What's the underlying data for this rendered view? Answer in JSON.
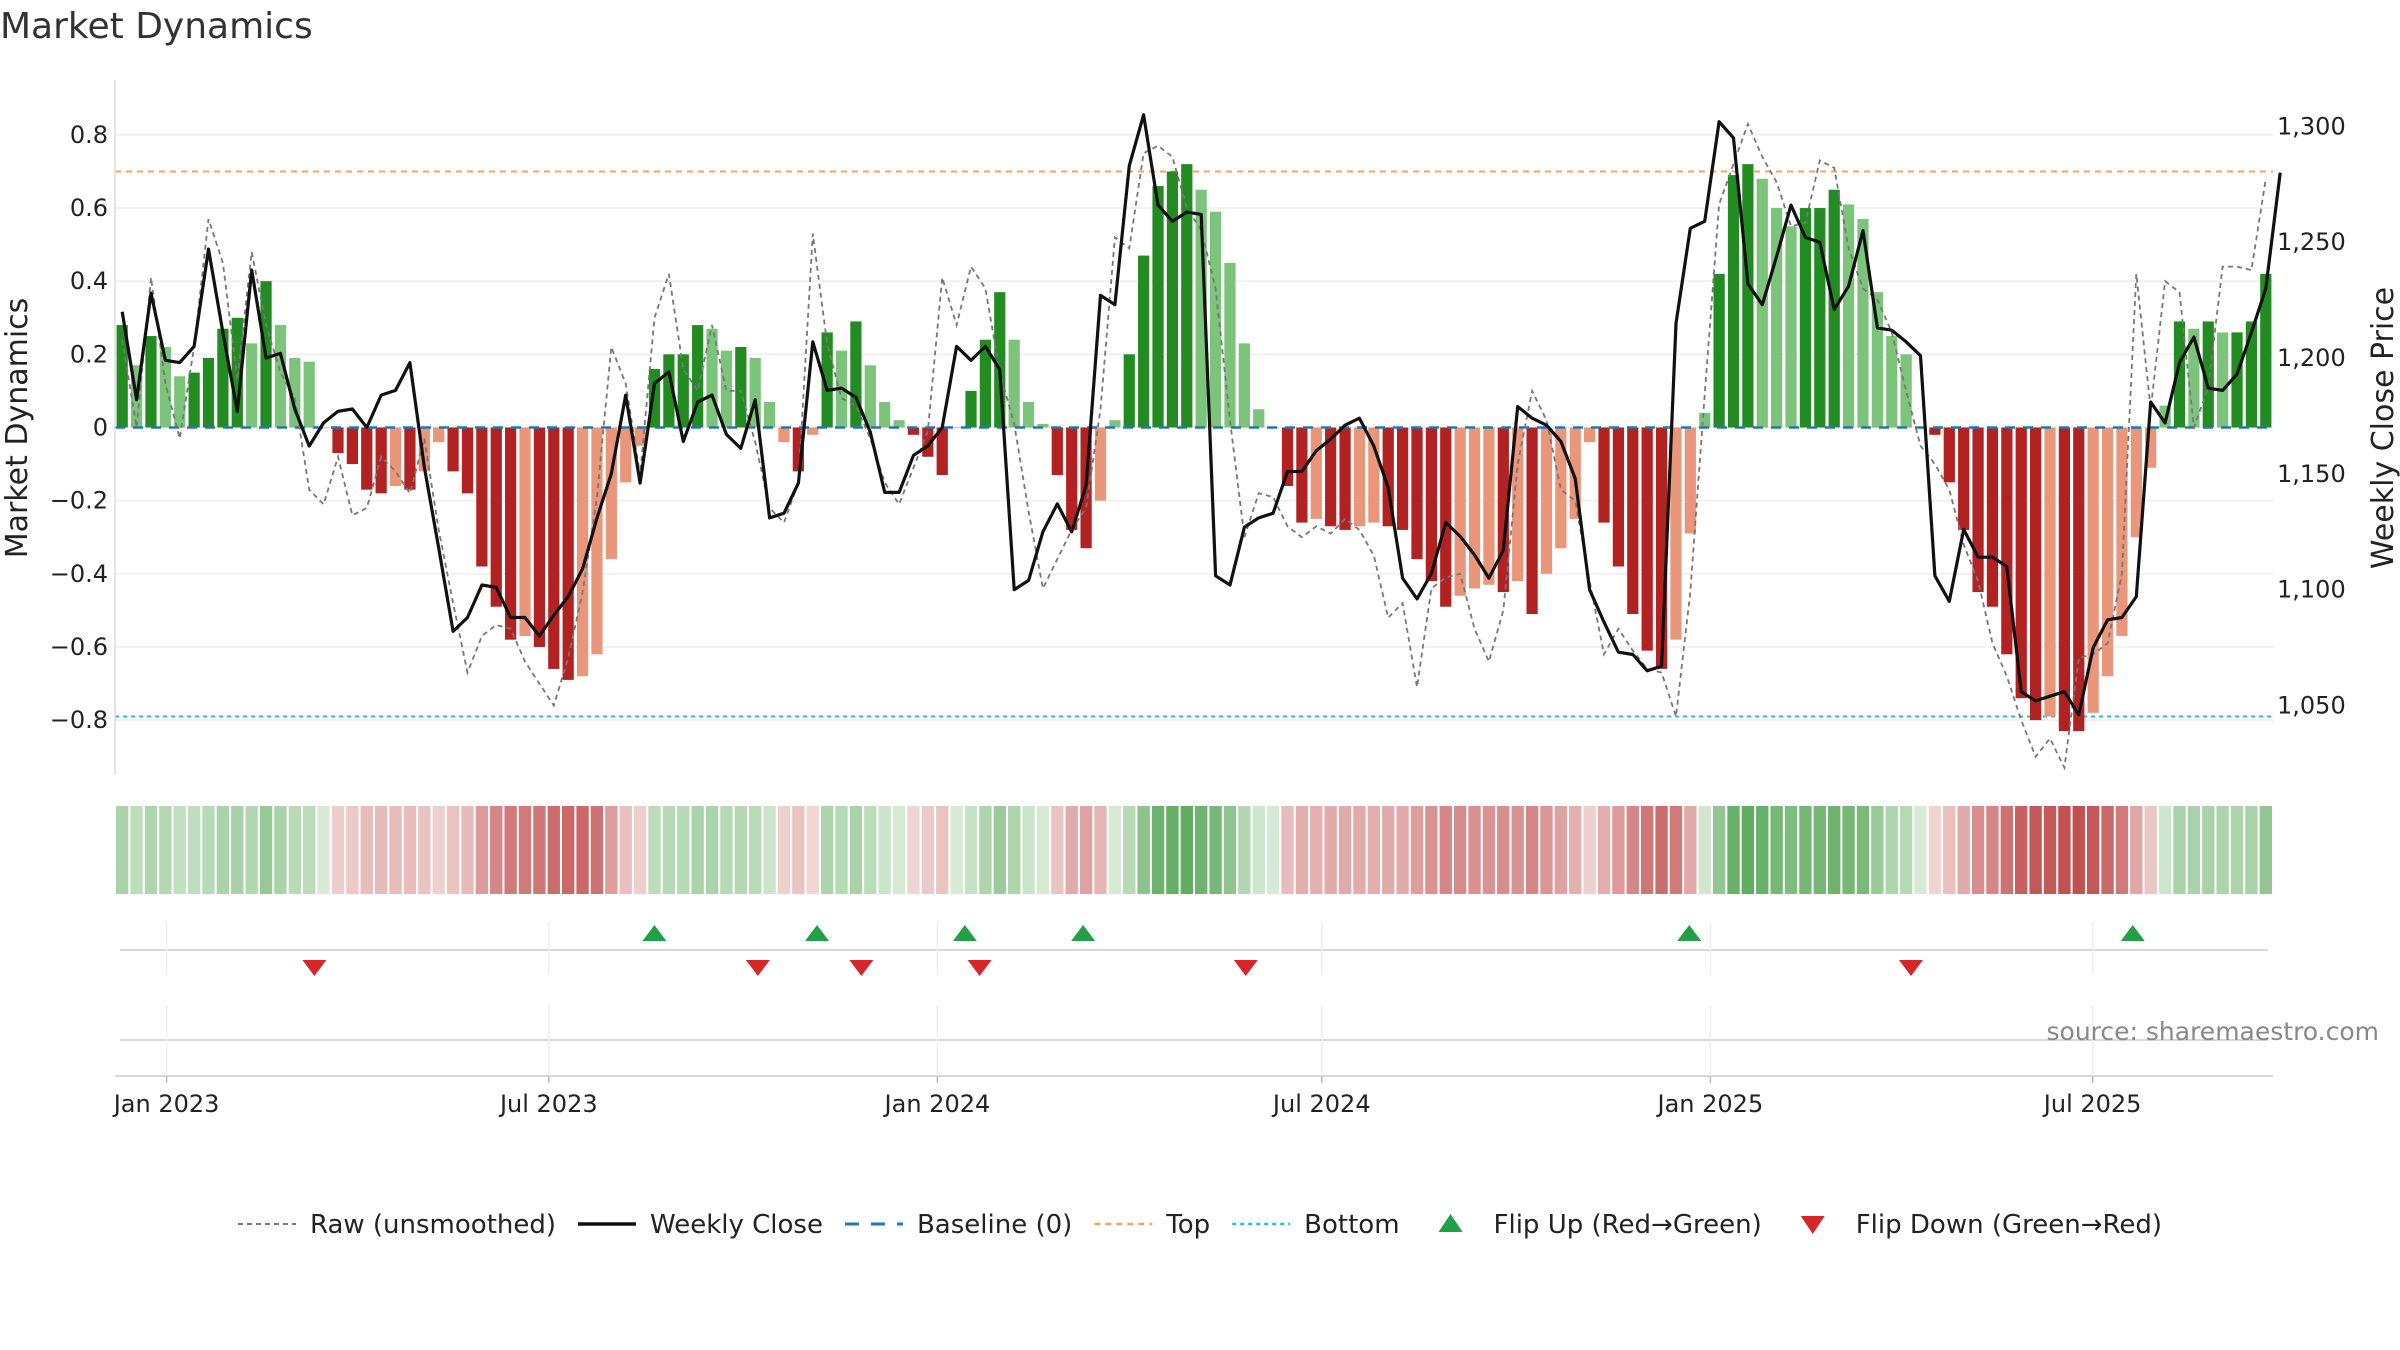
{
  "title": "Market Dynamics",
  "source_text": "source: sharemaestro.com",
  "colors": {
    "strong_green": "#228b22",
    "light_green": "#7cc47c",
    "strong_red": "#b22222",
    "light_red": "#e9967a",
    "close_line": "#111111",
    "raw_line": "#777777",
    "baseline": "#1f77b4",
    "top": "#f4a460",
    "bottom": "#20c5c5",
    "flip_up": "#22a045",
    "flip_down": "#d62728"
  },
  "legend": [
    {
      "key": "raw",
      "label": "Raw (unsmoothed)"
    },
    {
      "key": "close",
      "label": "Weekly Close"
    },
    {
      "key": "baseline",
      "label": "Baseline (0)"
    },
    {
      "key": "top",
      "label": "Top"
    },
    {
      "key": "bottom",
      "label": "Bottom"
    },
    {
      "key": "flip_up",
      "label": "Flip Up (Red→Green)"
    },
    {
      "key": "flip_down",
      "label": "Flip Down (Green→Red)"
    }
  ],
  "chart_data": {
    "type": "bar",
    "title": "Market Dynamics",
    "ylabel_left": "Market Dynamics",
    "ylabel_right": "Weekly Close Price",
    "ylim_left": [
      -0.95,
      0.95
    ],
    "ylim_right": [
      1020,
      1320
    ],
    "left_ticks": [
      0.8,
      0.6,
      0.4,
      0.2,
      0,
      -0.2,
      -0.4,
      -0.6,
      -0.8
    ],
    "left_tick_labels": [
      "0.8",
      "0.6",
      "0.4",
      "0.2",
      "0",
      "−0.2",
      "−0.4",
      "−0.6",
      "−0.8"
    ],
    "right_ticks": [
      1300,
      1250,
      1200,
      1150,
      1100,
      1050
    ],
    "right_tick_labels": [
      "1,300",
      "1,250",
      "1,200",
      "1,150",
      "1,100",
      "1,050"
    ],
    "x_ticks": [
      {
        "date": "2023-01-01",
        "label": "Jan 2023"
      },
      {
        "date": "2023-07-01",
        "label": "Jul 2023"
      },
      {
        "date": "2024-01-01",
        "label": "Jan 2024"
      },
      {
        "date": "2024-07-01",
        "label": "Jul 2024"
      },
      {
        "date": "2025-01-01",
        "label": "Jan 2025"
      },
      {
        "date": "2025-07-01",
        "label": "Jul 2025"
      }
    ],
    "first_week": "2022-12-11",
    "last_week": "2025-09-21",
    "top_level": 0.7,
    "bottom_level": -0.79,
    "baseline": 0,
    "market_dynamics": [
      0.28,
      0.17,
      0.25,
      0.22,
      0.14,
      0.15,
      0.19,
      0.27,
      0.3,
      0.23,
      0.4,
      0.28,
      0.19,
      0.18,
      0.0,
      -0.07,
      -0.1,
      -0.17,
      -0.18,
      -0.16,
      -0.17,
      -0.12,
      -0.04,
      -0.12,
      -0.18,
      -0.38,
      -0.49,
      -0.58,
      -0.57,
      -0.6,
      -0.66,
      -0.69,
      -0.68,
      -0.62,
      -0.36,
      -0.15,
      -0.05,
      0.16,
      0.2,
      0.2,
      0.28,
      0.27,
      0.21,
      0.22,
      0.19,
      0.07,
      -0.04,
      -0.12,
      -0.02,
      0.26,
      0.21,
      0.29,
      0.17,
      0.07,
      0.02,
      -0.02,
      -0.08,
      -0.13,
      0.0,
      0.1,
      0.24,
      0.37,
      0.24,
      0.07,
      0.01,
      -0.13,
      -0.28,
      -0.33,
      -0.2,
      0.02,
      0.2,
      0.47,
      0.66,
      0.7,
      0.72,
      0.65,
      0.59,
      0.45,
      0.23,
      0.05,
      0.0,
      -0.16,
      -0.26,
      -0.25,
      -0.27,
      -0.28,
      -0.27,
      -0.26,
      -0.27,
      -0.28,
      -0.36,
      -0.42,
      -0.49,
      -0.46,
      -0.44,
      -0.43,
      -0.45,
      -0.42,
      -0.51,
      -0.4,
      -0.33,
      -0.25,
      -0.04,
      -0.26,
      -0.38,
      -0.51,
      -0.61,
      -0.66,
      -0.58,
      -0.29,
      0.04,
      0.42,
      0.69,
      0.72,
      0.68,
      0.6,
      0.55,
      0.6,
      0.6,
      0.65,
      0.61,
      0.57,
      0.37,
      0.25,
      0.2,
      0.0,
      -0.02,
      -0.15,
      -0.28,
      -0.45,
      -0.49,
      -0.62,
      -0.74,
      -0.8,
      -0.79,
      -0.83,
      -0.83,
      -0.78,
      -0.68,
      -0.57,
      -0.3,
      -0.11,
      0.06,
      0.29,
      0.27,
      0.29,
      0.26,
      0.26,
      0.29,
      0.42
    ],
    "raw": [
      0.24,
      0.0,
      0.41,
      0.12,
      -0.03,
      0.22,
      0.57,
      0.45,
      0.13,
      0.48,
      0.28,
      0.15,
      0.08,
      -0.17,
      -0.21,
      -0.08,
      -0.24,
      -0.22,
      -0.08,
      -0.12,
      -0.18,
      -0.03,
      -0.28,
      -0.48,
      -0.67,
      -0.57,
      -0.54,
      -0.55,
      -0.64,
      -0.7,
      -0.76,
      -0.63,
      -0.45,
      -0.19,
      0.22,
      0.12,
      -0.13,
      0.3,
      0.42,
      0.16,
      0.1,
      0.28,
      0.1,
      0.1,
      -0.04,
      -0.22,
      -0.26,
      -0.15,
      0.53,
      0.23,
      0.08,
      0.06,
      -0.03,
      -0.15,
      -0.21,
      -0.11,
      -0.01,
      0.41,
      0.28,
      0.44,
      0.38,
      0.15,
      0.01,
      -0.23,
      -0.44,
      -0.36,
      -0.28,
      -0.22,
      0.05,
      0.52,
      0.49,
      0.75,
      0.77,
      0.74,
      0.6,
      0.54,
      0.38,
      0.02,
      -0.3,
      -0.18,
      -0.19,
      -0.27,
      -0.3,
      -0.27,
      -0.29,
      -0.25,
      -0.28,
      -0.35,
      -0.52,
      -0.48,
      -0.71,
      -0.44,
      -0.41,
      -0.4,
      -0.55,
      -0.64,
      -0.5,
      -0.1,
      0.1,
      0.02,
      -0.17,
      -0.2,
      -0.42,
      -0.62,
      -0.55,
      -0.61,
      -0.66,
      -0.67,
      -0.79,
      -0.45,
      0.09,
      0.61,
      0.72,
      0.83,
      0.74,
      0.67,
      0.55,
      0.56,
      0.73,
      0.71,
      0.49,
      0.38,
      0.35,
      0.26,
      0.1,
      -0.05,
      -0.1,
      -0.17,
      -0.32,
      -0.42,
      -0.59,
      -0.68,
      -0.8,
      -0.9,
      -0.85,
      -0.93,
      -0.63,
      -0.62,
      -0.59,
      -0.4,
      0.42,
      0.05,
      0.4,
      0.37,
      0.0,
      0.11,
      0.44,
      0.44,
      0.43,
      0.68
    ],
    "close": [
      1220,
      1182,
      1228,
      1199,
      1198,
      1205,
      1247,
      1211,
      1177,
      1238,
      1200,
      1202,
      1178,
      1162,
      1172,
      1177,
      1178,
      1170,
      1184,
      1186,
      1198,
      1153,
      1118,
      1082,
      1088,
      1102,
      1101,
      1088,
      1088,
      1080,
      1089,
      1097,
      1109,
      1131,
      1150,
      1184,
      1146,
      1189,
      1194,
      1164,
      1181,
      1184,
      1167,
      1161,
      1182,
      1131,
      1133,
      1146,
      1207,
      1186,
      1187,
      1183,
      1168,
      1142,
      1142,
      1158,
      1162,
      1170,
      1205,
      1199,
      1205,
      1195,
      1100,
      1104,
      1125,
      1137,
      1125,
      1145,
      1227,
      1223,
      1283,
      1305,
      1266,
      1259,
      1263,
      1262,
      1106,
      1102,
      1127,
      1131,
      1133,
      1151,
      1151,
      1160,
      1165,
      1171,
      1174,
      1162,
      1144,
      1105,
      1096,
      1107,
      1129,
      1123,
      1115,
      1105,
      1117,
      1179,
      1174,
      1171,
      1164,
      1148,
      1100,
      1086,
      1073,
      1072,
      1065,
      1067,
      1215,
      1256,
      1259,
      1302,
      1295,
      1232,
      1223,
      1244,
      1266,
      1252,
      1250,
      1221,
      1231,
      1255,
      1213,
      1212,
      1207,
      1201,
      1106,
      1095,
      1126,
      1114,
      1114,
      1110,
      1056,
      1052,
      1054,
      1056,
      1046,
      1075,
      1087,
      1088,
      1097,
      1181,
      1172,
      1198,
      1209,
      1187,
      1186,
      1193,
      1211,
      1230,
      1280
    ],
    "strength_band": [
      0.28,
      0.17,
      0.25,
      0.22,
      0.14,
      0.15,
      0.19,
      0.27,
      0.3,
      0.23,
      0.4,
      0.28,
      0.19,
      0.18,
      0.0,
      -0.07,
      -0.1,
      -0.17,
      -0.18,
      -0.16,
      -0.17,
      -0.12,
      -0.04,
      -0.12,
      -0.18,
      -0.38,
      -0.49,
      -0.58,
      -0.57,
      -0.6,
      -0.66,
      -0.69,
      -0.68,
      -0.62,
      -0.36,
      -0.15,
      -0.05,
      0.16,
      0.2,
      0.2,
      0.28,
      0.27,
      0.21,
      0.22,
      0.19,
      0.07,
      -0.04,
      -0.12,
      -0.02,
      0.26,
      0.21,
      0.29,
      0.17,
      0.07,
      0.02,
      -0.02,
      -0.08,
      -0.13,
      0.0,
      0.1,
      0.24,
      0.37,
      0.24,
      0.07,
      0.01,
      -0.13,
      -0.28,
      -0.33,
      -0.2,
      0.02,
      0.2,
      0.47,
      0.66,
      0.7,
      0.72,
      0.65,
      0.59,
      0.45,
      0.23,
      0.05,
      0.0,
      -0.16,
      -0.26,
      -0.25,
      -0.27,
      -0.28,
      -0.27,
      -0.26,
      -0.27,
      -0.28,
      -0.36,
      -0.42,
      -0.49,
      -0.46,
      -0.44,
      -0.43,
      -0.45,
      -0.42,
      -0.51,
      -0.4,
      -0.33,
      -0.25,
      -0.04,
      -0.26,
      -0.38,
      -0.51,
      -0.61,
      -0.66,
      -0.58,
      -0.29,
      0.04,
      0.42,
      0.69,
      0.72,
      0.68,
      0.6,
      0.55,
      0.6,
      0.6,
      0.65,
      0.61,
      0.57,
      0.37,
      0.25,
      0.2,
      0.0,
      -0.02,
      -0.15,
      -0.28,
      -0.45,
      -0.49,
      -0.62,
      -0.74,
      -0.8,
      -0.79,
      -0.83,
      -0.83,
      -0.78,
      -0.68,
      -0.57,
      -0.3,
      -0.11,
      0.06,
      0.29,
      0.27,
      0.29,
      0.26,
      0.26,
      0.29,
      0.42
    ],
    "flips_up": [
      "2023-08-20",
      "2023-11-05",
      "2024-01-14",
      "2024-03-10",
      "2024-12-22",
      "2025-07-20"
    ],
    "flips_down": [
      "2023-03-12",
      "2023-10-08",
      "2023-11-26",
      "2024-01-21",
      "2024-05-26",
      "2025-04-06"
    ]
  }
}
